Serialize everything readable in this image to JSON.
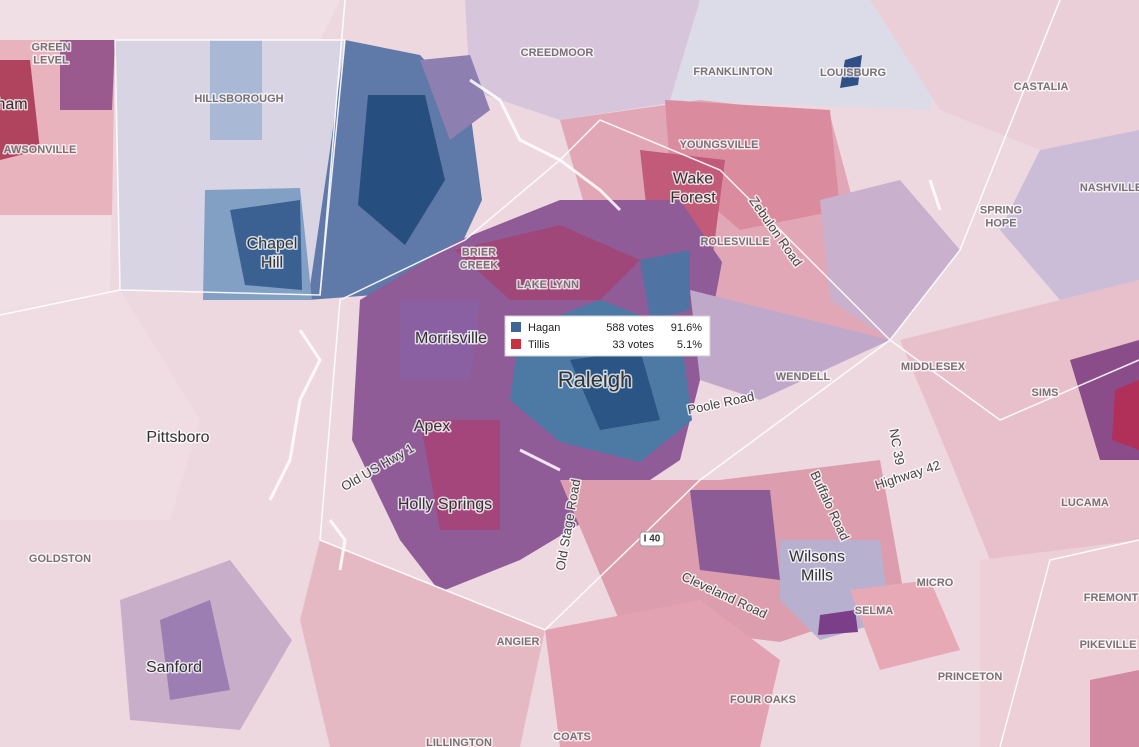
{
  "large_places": [
    [
      "Chapel",
      "Hill"
    ],
    [
      "Wake",
      "Forest"
    ],
    [
      "Morrisville"
    ],
    [
      "Raleigh"
    ],
    [
      "Apex"
    ],
    [
      "Holly Springs"
    ],
    [
      "Pittsboro"
    ],
    [
      "Sanford"
    ],
    [
      "Wilsons",
      "Mills"
    ],
    [
      "ham"
    ]
  ],
  "small_places": [
    [
      "GREEN",
      "LEVEL"
    ],
    [
      "AWSONVILLE"
    ],
    [
      "HILLSBOROUGH"
    ],
    [
      "CREEDMOOR"
    ],
    [
      "FRANKLINTON"
    ],
    [
      "LOUISBURG"
    ],
    [
      "CASTALIA"
    ],
    [
      "YOUNGSVILLE"
    ],
    [
      "NASHVILLE"
    ],
    [
      "SPRING",
      "HOPE"
    ],
    [
      "ROLESVILLE"
    ],
    [
      "BRIER",
      "CREEK"
    ],
    [
      "LAKE LYNN"
    ],
    [
      "WENDELL"
    ],
    [
      "MIDDLESEX"
    ],
    [
      "SIMS"
    ],
    [
      "LUCAMA"
    ],
    [
      "MICRO"
    ],
    [
      "FREMONT"
    ],
    [
      "PIKEVILLE"
    ],
    [
      "PRINCETON"
    ],
    [
      "SELMA"
    ],
    [
      "FOUR OAKS"
    ],
    [
      "COATS"
    ],
    [
      "ANGIER"
    ],
    [
      "GOLDSTON"
    ],
    [
      "LILLINGTON"
    ]
  ],
  "roads": [
    "Zebulon Road",
    "Poole Road",
    "Old US Hwy 1",
    "Old Stage Road",
    "Cleveland Road",
    "Buffalo Road",
    "NC 39",
    "Highway 42"
  ],
  "highway_shield": "I 40",
  "tooltip": {
    "rows": [
      {
        "candidate": "Hagan",
        "votes": "588 votes",
        "share": "91.6%"
      },
      {
        "candidate": "Tillis",
        "votes": "33 votes",
        "share": "5.1%"
      }
    ]
  }
}
